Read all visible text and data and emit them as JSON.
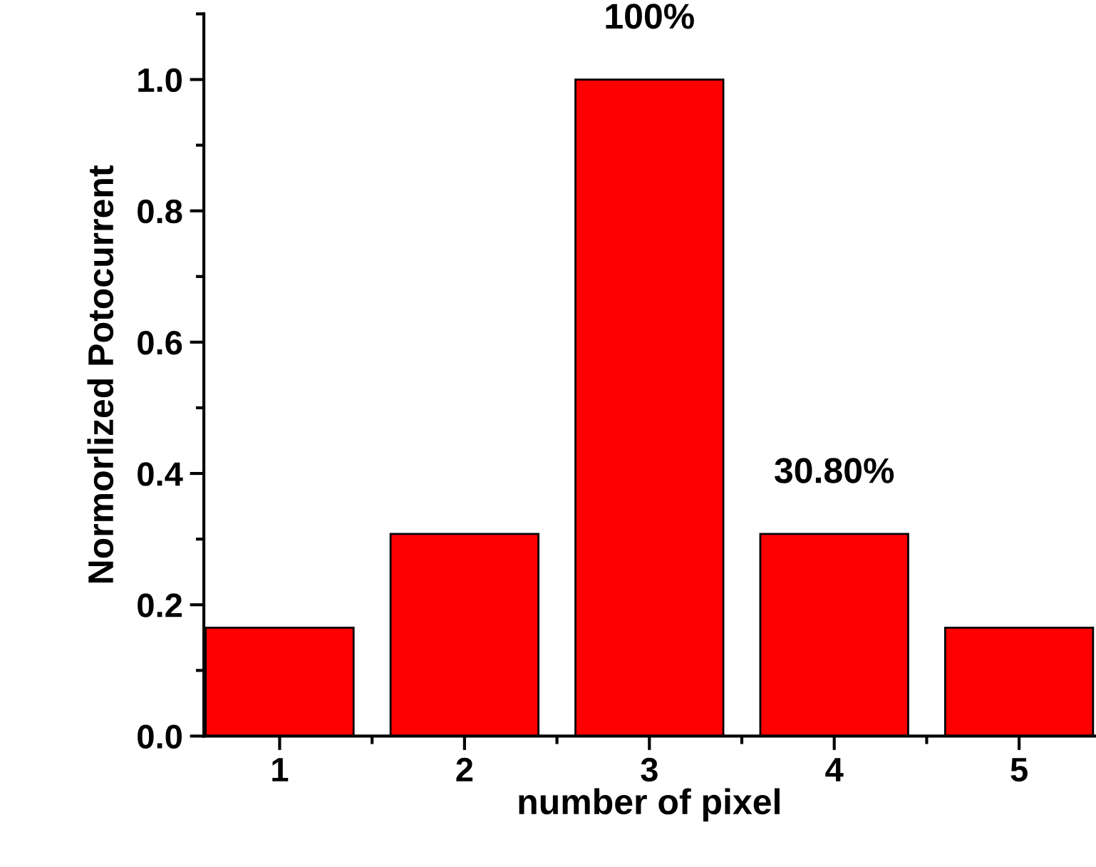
{
  "chart_data": {
    "type": "bar",
    "xlabel": "number of pixel",
    "ylabel": "Normorlized Potocurrent",
    "x": [
      1,
      2,
      3,
      4,
      5
    ],
    "values": [
      0.165,
      0.308,
      1.0,
      0.308,
      0.165
    ],
    "color": "#ff0000",
    "xlim": [
      0.59,
      5.41
    ],
    "xticks": [
      1,
      2,
      3,
      4,
      5
    ],
    "ylim": [
      0,
      1.1
    ],
    "yticks": [
      {
        "value": 0,
        "label": "0.0"
      },
      0.2,
      0.4,
      0.6,
      0.8,
      {
        "value": 1,
        "label": "1.0"
      }
    ],
    "annotations": [
      {
        "text": "100%",
        "x": 3,
        "y": 1.0
      },
      {
        "text": "30.80%",
        "x": 4,
        "y": 0.308
      }
    ],
    "grid": false,
    "legend": false
  }
}
